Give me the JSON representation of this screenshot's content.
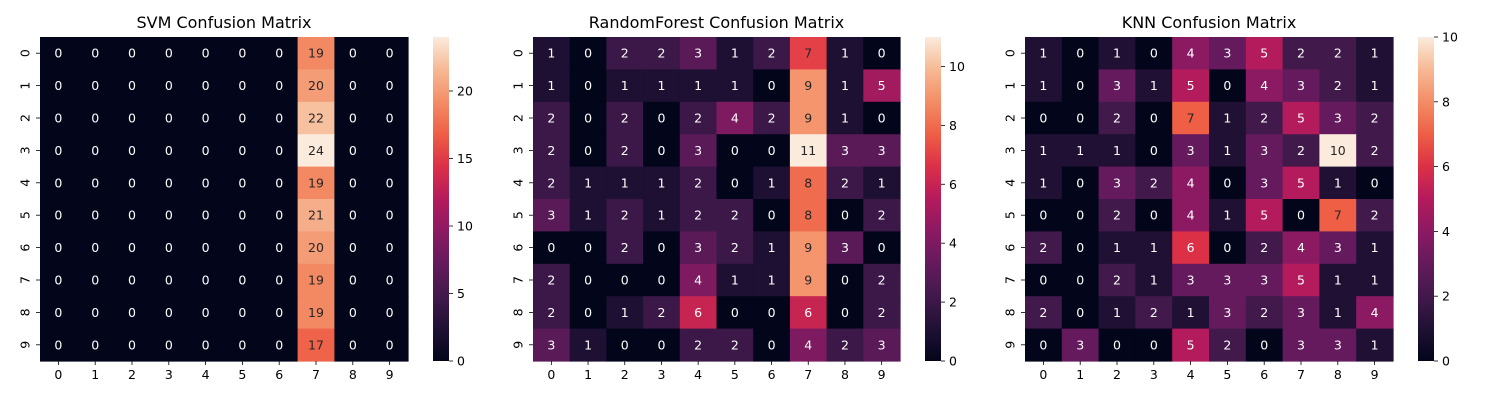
{
  "chart_data": [
    {
      "type": "heatmap",
      "title": "SVM Confusion Matrix",
      "x_labels": [
        "0",
        "1",
        "2",
        "3",
        "4",
        "5",
        "6",
        "7",
        "8",
        "9"
      ],
      "y_labels": [
        "0",
        "1",
        "2",
        "3",
        "4",
        "5",
        "6",
        "7",
        "8",
        "9"
      ],
      "matrix": [
        [
          0,
          0,
          0,
          0,
          0,
          0,
          0,
          19,
          0,
          0
        ],
        [
          0,
          0,
          0,
          0,
          0,
          0,
          0,
          20,
          0,
          0
        ],
        [
          0,
          0,
          0,
          0,
          0,
          0,
          0,
          22,
          0,
          0
        ],
        [
          0,
          0,
          0,
          0,
          0,
          0,
          0,
          24,
          0,
          0
        ],
        [
          0,
          0,
          0,
          0,
          0,
          0,
          0,
          19,
          0,
          0
        ],
        [
          0,
          0,
          0,
          0,
          0,
          0,
          0,
          21,
          0,
          0
        ],
        [
          0,
          0,
          0,
          0,
          0,
          0,
          0,
          20,
          0,
          0
        ],
        [
          0,
          0,
          0,
          0,
          0,
          0,
          0,
          19,
          0,
          0
        ],
        [
          0,
          0,
          0,
          0,
          0,
          0,
          0,
          19,
          0,
          0
        ],
        [
          0,
          0,
          0,
          0,
          0,
          0,
          0,
          17,
          0,
          0
        ]
      ],
      "vmin": 0,
      "vmax": 24,
      "colorbar_ticks": [
        0,
        5,
        10,
        15,
        20
      ],
      "colormap": "rocket",
      "grid": false,
      "colorbar": "right"
    },
    {
      "type": "heatmap",
      "title": "RandomForest Confusion Matrix",
      "x_labels": [
        "0",
        "1",
        "2",
        "3",
        "4",
        "5",
        "6",
        "7",
        "8",
        "9"
      ],
      "y_labels": [
        "0",
        "1",
        "2",
        "3",
        "4",
        "5",
        "6",
        "7",
        "8",
        "9"
      ],
      "matrix": [
        [
          1,
          0,
          2,
          2,
          3,
          1,
          2,
          7,
          1,
          0
        ],
        [
          1,
          0,
          1,
          1,
          1,
          1,
          0,
          9,
          1,
          5
        ],
        [
          2,
          0,
          2,
          0,
          2,
          4,
          2,
          9,
          1,
          0
        ],
        [
          2,
          0,
          2,
          0,
          3,
          0,
          0,
          11,
          3,
          3
        ],
        [
          2,
          1,
          1,
          1,
          2,
          0,
          1,
          8,
          2,
          1
        ],
        [
          3,
          1,
          2,
          1,
          2,
          2,
          0,
          8,
          0,
          2
        ],
        [
          0,
          0,
          2,
          0,
          3,
          2,
          1,
          9,
          3,
          0
        ],
        [
          2,
          0,
          0,
          0,
          4,
          1,
          1,
          9,
          0,
          2
        ],
        [
          2,
          0,
          1,
          2,
          6,
          0,
          0,
          6,
          0,
          2
        ],
        [
          3,
          1,
          0,
          0,
          2,
          2,
          0,
          4,
          2,
          3
        ]
      ],
      "vmin": 0,
      "vmax": 11,
      "colorbar_ticks": [
        0,
        2,
        4,
        6,
        8,
        10
      ],
      "colormap": "rocket",
      "grid": false,
      "colorbar": "right"
    },
    {
      "type": "heatmap",
      "title": "KNN Confusion Matrix",
      "x_labels": [
        "0",
        "1",
        "2",
        "3",
        "4",
        "5",
        "6",
        "7",
        "8",
        "9"
      ],
      "y_labels": [
        "0",
        "1",
        "2",
        "3",
        "4",
        "5",
        "6",
        "7",
        "8",
        "9"
      ],
      "matrix": [
        [
          1,
          0,
          1,
          0,
          4,
          3,
          5,
          2,
          2,
          1
        ],
        [
          1,
          0,
          3,
          1,
          5,
          0,
          4,
          3,
          2,
          1
        ],
        [
          0,
          0,
          2,
          0,
          7,
          1,
          2,
          5,
          3,
          2
        ],
        [
          1,
          1,
          1,
          0,
          3,
          1,
          3,
          2,
          10,
          2
        ],
        [
          1,
          0,
          3,
          2,
          4,
          0,
          3,
          5,
          1,
          0
        ],
        [
          0,
          0,
          2,
          0,
          4,
          1,
          5,
          0,
          7,
          2
        ],
        [
          2,
          0,
          1,
          1,
          6,
          0,
          2,
          4,
          3,
          1
        ],
        [
          0,
          0,
          2,
          1,
          3,
          3,
          3,
          5,
          1,
          1
        ],
        [
          2,
          0,
          1,
          2,
          1,
          3,
          2,
          3,
          1,
          4
        ],
        [
          0,
          3,
          0,
          0,
          5,
          2,
          0,
          3,
          3,
          1
        ]
      ],
      "vmin": 0,
      "vmax": 10,
      "colorbar_ticks": [
        0,
        2,
        4,
        6,
        8,
        10
      ],
      "colormap": "rocket",
      "grid": false,
      "colorbar": "right"
    }
  ]
}
